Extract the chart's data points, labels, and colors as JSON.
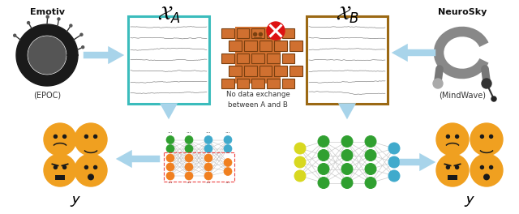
{
  "left_device_label": "Emotiv",
  "left_device_sub": "(EPOC)",
  "right_device_label": "NeuroSky",
  "right_device_sub": "(MindWave)",
  "xa_label": "$\\mathcal{X}_A$",
  "xb_label": "$\\mathcal{X}_B$",
  "y_label": "$\\mathcal{y}$",
  "barrier_text": "No data exchange\nbetween A and B",
  "eeg_box_left_color": "#3bbcbc",
  "eeg_box_right_color": "#9B6914",
  "bg_color": "#ffffff",
  "arrow_color": "#a8d4ea",
  "emoji_color": "#f0a020",
  "brick_color": "#d07030",
  "brick_line_color": "#7a4010",
  "x_cross_color": "#cc2222",
  "nn_left_green": "#30a030",
  "nn_left_blue": "#40aacc",
  "nn_left_orange": "#f08020",
  "nn_right_yellow": "#d8d820",
  "nn_right_green": "#30a030",
  "nn_right_blue": "#40aacc"
}
